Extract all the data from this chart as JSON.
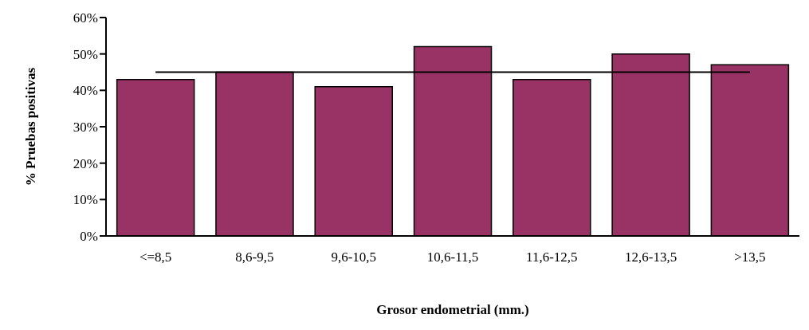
{
  "chart_data": {
    "type": "bar",
    "xlabel": "Grosor endometrial (mm.)",
    "ylabel": "% Pruebas positivas",
    "categories": [
      "<=8,5",
      "8,6-9,5",
      "9,6-10,5",
      "10,6-11,5",
      "11,6-12,5",
      "12,6-13,5",
      ">13,5"
    ],
    "values": [
      43,
      45,
      41,
      52,
      43,
      50,
      47
    ],
    "color": "#993366",
    "ylim": [
      0,
      60
    ],
    "yticks": [
      {
        "value": 0,
        "label": "0%"
      },
      {
        "value": 10,
        "label": "10%"
      },
      {
        "value": 20,
        "label": "20%"
      },
      {
        "value": 30,
        "label": "30%"
      },
      {
        "value": 40,
        "label": "40%"
      },
      {
        "value": 50,
        "label": "50%"
      },
      {
        "value": 60,
        "label": "60%"
      }
    ],
    "ref_lines": [
      {
        "axis": "y",
        "value": 45,
        "color": "#000000"
      }
    ],
    "grid": false,
    "legend": false
  }
}
